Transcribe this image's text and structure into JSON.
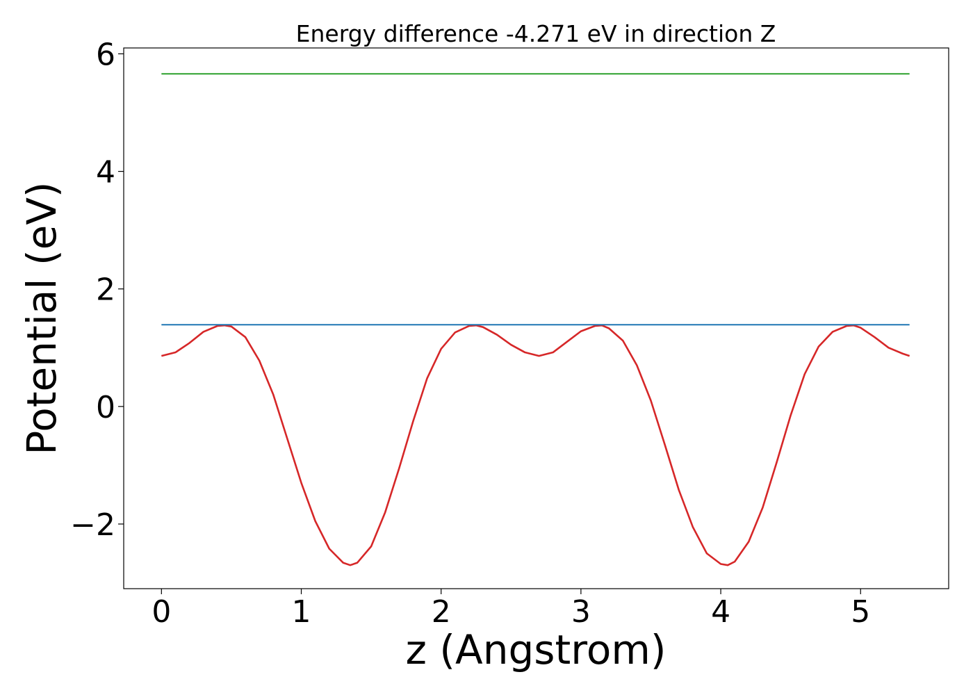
{
  "chart_data": {
    "type": "line",
    "title": "Energy difference -4.271 eV in direction Z",
    "xlabel": "z (Angstrom)",
    "ylabel": "Potential (eV)",
    "xlim": [
      -0.27,
      5.63
    ],
    "ylim": [
      -3.1,
      6.1
    ],
    "xticks": [
      0,
      1,
      2,
      3,
      4,
      5
    ],
    "xtick_labels": [
      "0",
      "1",
      "2",
      "3",
      "4",
      "5"
    ],
    "yticks": [
      -2,
      0,
      2,
      4,
      6
    ],
    "ytick_labels": [
      "−2",
      "0",
      "2",
      "4",
      "6"
    ],
    "grid": false,
    "series": [
      {
        "color": "#d62728",
        "x": [
          0.0,
          0.1,
          0.2,
          0.3,
          0.4,
          0.45,
          0.5,
          0.6,
          0.7,
          0.8,
          0.9,
          1.0,
          1.1,
          1.2,
          1.3,
          1.35,
          1.4,
          1.5,
          1.6,
          1.7,
          1.8,
          1.9,
          2.0,
          2.1,
          2.2,
          2.25,
          2.3,
          2.4,
          2.5,
          2.6,
          2.7,
          2.8,
          2.9,
          3.0,
          3.1,
          3.15,
          3.2,
          3.3,
          3.4,
          3.5,
          3.6,
          3.7,
          3.8,
          3.9,
          4.0,
          4.05,
          4.1,
          4.2,
          4.3,
          4.4,
          4.5,
          4.6,
          4.7,
          4.8,
          4.9,
          4.95,
          5.0,
          5.1,
          5.2,
          5.3,
          5.35
        ],
        "y": [
          0.86,
          0.92,
          1.08,
          1.27,
          1.37,
          1.38,
          1.36,
          1.18,
          0.78,
          0.2,
          -0.55,
          -1.3,
          -1.95,
          -2.42,
          -2.66,
          -2.7,
          -2.66,
          -2.38,
          -1.8,
          -1.05,
          -0.25,
          0.48,
          0.98,
          1.26,
          1.37,
          1.38,
          1.35,
          1.22,
          1.05,
          0.92,
          0.86,
          0.92,
          1.1,
          1.28,
          1.37,
          1.38,
          1.33,
          1.12,
          0.7,
          0.1,
          -0.65,
          -1.42,
          -2.05,
          -2.5,
          -2.68,
          -2.7,
          -2.64,
          -2.3,
          -1.72,
          -0.95,
          -0.15,
          0.55,
          1.02,
          1.27,
          1.37,
          1.38,
          1.34,
          1.18,
          1.0,
          0.9,
          0.86
        ]
      },
      {
        "color": "#1f77b4",
        "x": [
          0.0,
          5.35
        ],
        "y": [
          1.39,
          1.39
        ]
      },
      {
        "color": "#2ca02c",
        "x": [
          0.0,
          5.35
        ],
        "y": [
          5.66,
          5.66
        ]
      }
    ]
  }
}
